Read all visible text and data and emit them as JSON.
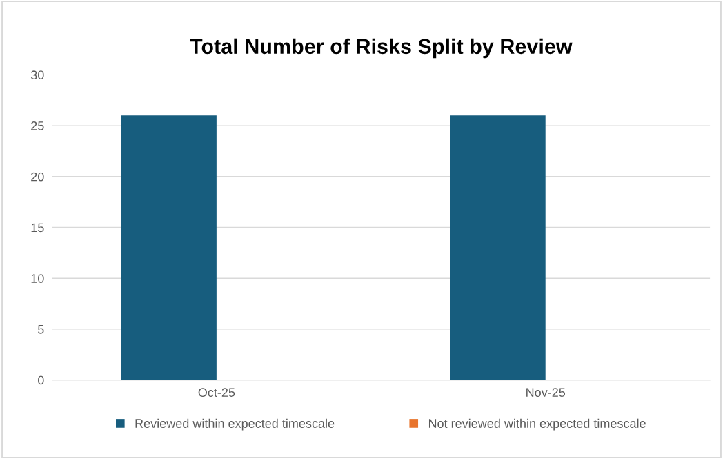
{
  "chart_data": {
    "type": "bar",
    "title": "Total Number of Risks Split by Review",
    "categories": [
      "Oct-25",
      "Nov-25"
    ],
    "series": [
      {
        "name": "Reviewed within expected timescale",
        "color": "#175d7e",
        "values": [
          26,
          26
        ]
      },
      {
        "name": "Not reviewed within expected timescale",
        "color": "#e8742c",
        "values": [
          0,
          0
        ]
      }
    ],
    "ylim": [
      0,
      30
    ],
    "yticks": [
      0,
      5,
      10,
      15,
      20,
      25,
      30
    ],
    "grid": "y",
    "legend": "bottom"
  }
}
